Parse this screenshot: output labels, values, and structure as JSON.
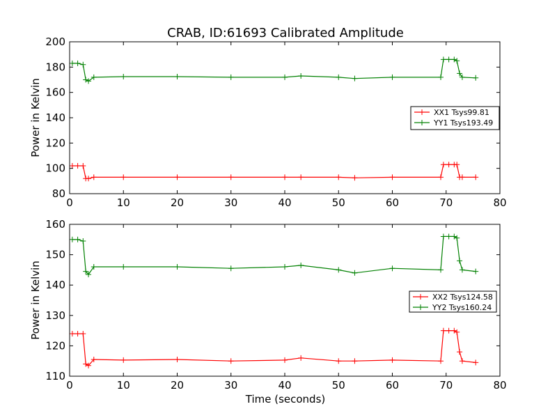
{
  "chart_data": [
    {
      "type": "line",
      "title": "CRAB, ID:61693 Calibrated Amplitude",
      "xlabel": "",
      "ylabel": "Power in Kelvin",
      "xlim": [
        0,
        80
      ],
      "ylim": [
        80,
        200
      ],
      "xticks": [
        0,
        10,
        20,
        30,
        40,
        50,
        60,
        70,
        80
      ],
      "yticks": [
        80,
        100,
        120,
        140,
        160,
        180,
        200
      ],
      "grid": false,
      "legend_position": "center-right",
      "marker": "+",
      "x": [
        0.5,
        1.5,
        2.5,
        3.0,
        3.5,
        4.5,
        10,
        20,
        30,
        40,
        43,
        50,
        53,
        60,
        69,
        69.5,
        70.5,
        71.5,
        72,
        72.5,
        73,
        75.5
      ],
      "series": [
        {
          "name": "XX1 Tsys99.81",
          "color": "#ff0000",
          "values": [
            102,
            102,
            102,
            92,
            92,
            93,
            93,
            93,
            93,
            93,
            93,
            93,
            92.5,
            93,
            93,
            103,
            103,
            103,
            103,
            93,
            93,
            93
          ]
        },
        {
          "name": "YY1 Tsys193.49",
          "color": "#008000",
          "values": [
            183,
            183,
            182,
            170,
            169,
            172,
            172.5,
            172.5,
            172,
            172,
            173,
            172,
            171,
            172,
            172,
            186,
            186,
            186,
            185,
            175,
            172,
            171.5
          ]
        }
      ]
    },
    {
      "type": "line",
      "title": "",
      "xlabel": "Time (seconds)",
      "ylabel": "Power in Kelvin",
      "xlim": [
        0,
        80
      ],
      "ylim": [
        110,
        160
      ],
      "xticks": [
        0,
        10,
        20,
        30,
        40,
        50,
        60,
        70,
        80
      ],
      "yticks": [
        110,
        120,
        130,
        140,
        150,
        160
      ],
      "grid": false,
      "legend_position": "center-right",
      "marker": "+",
      "x": [
        0.5,
        1.5,
        2.5,
        3.0,
        3.5,
        4.5,
        10,
        20,
        30,
        40,
        43,
        50,
        53,
        60,
        69,
        69.5,
        70.5,
        71.5,
        72,
        72.5,
        73,
        75.5
      ],
      "series": [
        {
          "name": "XX2 Tsys124.58",
          "color": "#ff0000",
          "values": [
            124,
            124,
            124,
            114,
            113.5,
            115.5,
            115.3,
            115.5,
            115,
            115.3,
            116,
            115,
            115,
            115.3,
            115,
            125,
            125,
            125,
            124.5,
            118,
            115,
            114.5
          ]
        },
        {
          "name": "YY2 Tsys160.24",
          "color": "#008000",
          "values": [
            155,
            155,
            154.5,
            144.5,
            143.5,
            146,
            146,
            146,
            145.5,
            146,
            146.5,
            145,
            144,
            145.5,
            145,
            156,
            156,
            156,
            155.5,
            148,
            145,
            144.5
          ]
        }
      ]
    }
  ]
}
